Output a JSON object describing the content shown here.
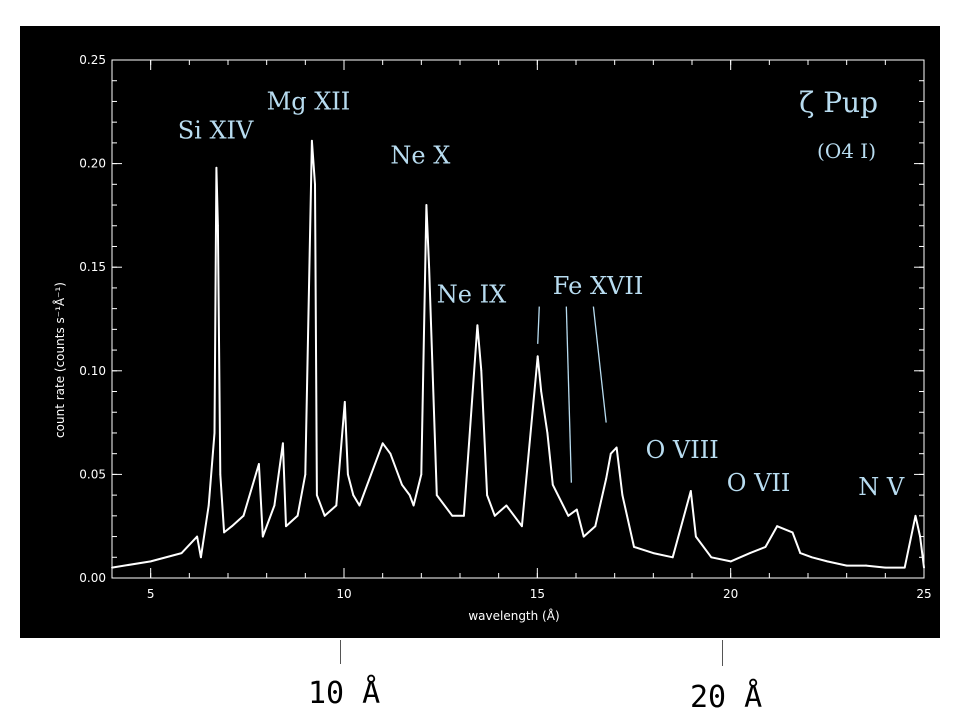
{
  "chart_data": {
    "type": "line",
    "xlabel": "wavelength (Å)",
    "ylabel": "count rate (counts s⁻¹Å⁻¹)",
    "xlim": [
      4,
      25
    ],
    "ylim": [
      0,
      0.25
    ],
    "xticks": [
      "5",
      "10",
      "15",
      "20",
      "25"
    ],
    "yticks": [
      "0.00",
      "0.05",
      "0.10",
      "0.15",
      "0.20",
      "0.25"
    ],
    "grid": false,
    "series": [
      {
        "color": "#ffffff",
        "x": [
          4.0,
          5.0,
          5.8,
          6.2,
          6.3,
          6.5,
          6.65,
          6.7,
          6.74,
          6.8,
          6.9,
          7.1,
          7.4,
          7.8,
          7.9,
          8.2,
          8.42,
          8.5,
          8.8,
          9.0,
          9.17,
          9.25,
          9.3,
          9.5,
          9.8,
          10.02,
          10.1,
          10.24,
          10.4,
          10.7,
          11.0,
          11.2,
          11.5,
          11.7,
          11.8,
          12.0,
          12.13,
          12.2,
          12.4,
          12.8,
          13.1,
          13.45,
          13.55,
          13.7,
          13.9,
          14.2,
          14.6,
          15.01,
          15.1,
          15.26,
          15.4,
          15.8,
          16.02,
          16.2,
          16.5,
          16.78,
          16.9,
          17.05,
          17.2,
          17.5,
          18.0,
          18.5,
          18.97,
          19.1,
          19.5,
          20.0,
          20.5,
          20.9,
          21.2,
          21.6,
          21.8,
          22.1,
          22.5,
          23.0,
          23.5,
          24.0,
          24.5,
          24.78,
          24.9,
          25.0
        ],
        "y": [
          0.005,
          0.008,
          0.012,
          0.02,
          0.01,
          0.035,
          0.07,
          0.198,
          0.17,
          0.05,
          0.022,
          0.025,
          0.03,
          0.055,
          0.02,
          0.035,
          0.065,
          0.025,
          0.03,
          0.05,
          0.211,
          0.19,
          0.04,
          0.03,
          0.035,
          0.085,
          0.05,
          0.04,
          0.035,
          0.05,
          0.065,
          0.06,
          0.045,
          0.04,
          0.035,
          0.05,
          0.18,
          0.15,
          0.04,
          0.03,
          0.03,
          0.122,
          0.1,
          0.04,
          0.03,
          0.035,
          0.025,
          0.107,
          0.09,
          0.07,
          0.045,
          0.03,
          0.033,
          0.02,
          0.025,
          0.048,
          0.06,
          0.063,
          0.04,
          0.015,
          0.012,
          0.01,
          0.042,
          0.02,
          0.01,
          0.008,
          0.012,
          0.015,
          0.025,
          0.022,
          0.012,
          0.01,
          0.008,
          0.006,
          0.006,
          0.005,
          0.005,
          0.03,
          0.02,
          0.005
        ]
      }
    ],
    "annotations": [
      {
        "text": "Si XIV",
        "x": 5.7,
        "y": 0.212
      },
      {
        "text": "Mg XII",
        "x": 8.0,
        "y": 0.226
      },
      {
        "text": "Ne X",
        "x": 11.2,
        "y": 0.2
      },
      {
        "text": "Ne IX",
        "x": 12.4,
        "y": 0.133
      },
      {
        "text": "Fe XVII",
        "x": 15.4,
        "y": 0.137
      },
      {
        "text": "O VIII",
        "x": 17.8,
        "y": 0.058
      },
      {
        "text": "O VII",
        "x": 19.9,
        "y": 0.042
      },
      {
        "text": "N V",
        "x": 23.3,
        "y": 0.04
      }
    ],
    "fe_pointer_lines": [
      {
        "from": [
          15.05,
          0.131
        ],
        "to": [
          15.01,
          0.113
        ]
      },
      {
        "from": [
          15.75,
          0.131
        ],
        "to": [
          15.88,
          0.046
        ]
      },
      {
        "from": [
          16.45,
          0.131
        ],
        "to": [
          16.78,
          0.075
        ]
      }
    ],
    "star_label": "ζ Pup",
    "star_type": "(O4 I)"
  },
  "bottom_labels": {
    "left": "10 Å",
    "right": "20 Å"
  }
}
